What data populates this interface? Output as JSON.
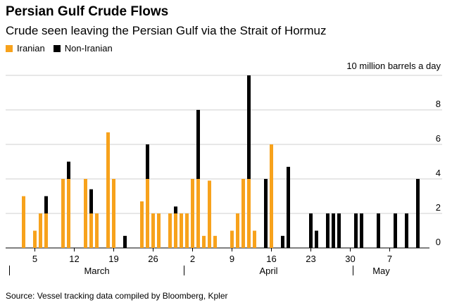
{
  "header": {
    "title": "Persian Gulf Crude Flows",
    "subtitle": "Crude seen leaving the Persian Gulf via the Strait of Hormuz"
  },
  "legend": [
    {
      "label": "Iranian",
      "color": "#f7a21c"
    },
    {
      "label": "Non-Iranian",
      "color": "#000000"
    }
  ],
  "footer": {
    "source": "Source: Vessel tracking data compiled by Bloomberg, Kpler"
  },
  "chart_data": {
    "type": "bar",
    "stacked": true,
    "ylabel": "10 million barrels a day",
    "ylim": [
      0,
      10
    ],
    "yticks": [
      0,
      2,
      4,
      6,
      8
    ],
    "grid": true,
    "x_tick_labels": [
      {
        "label": "5",
        "day": 5
      },
      {
        "label": "12",
        "day": 12
      },
      {
        "label": "19",
        "day": 19
      },
      {
        "label": "26",
        "day": 26
      },
      {
        "label": "2",
        "day": 33
      },
      {
        "label": "9",
        "day": 40
      },
      {
        "label": "16",
        "day": 47
      },
      {
        "label": "23",
        "day": 54
      },
      {
        "label": "30",
        "day": 61
      },
      {
        "label": "7",
        "day": 68
      }
    ],
    "months": [
      {
        "label": "March",
        "start": 1
      },
      {
        "label": "April",
        "start": 32
      },
      {
        "label": "May",
        "start": 62
      }
    ],
    "x": [
      3,
      5,
      6,
      7,
      10,
      11,
      14,
      15,
      16,
      18,
      19,
      21,
      24,
      25,
      26,
      27,
      29,
      30,
      31,
      32,
      33,
      34,
      35,
      36,
      37,
      38,
      40,
      41,
      42,
      43,
      44,
      46,
      47,
      49,
      50,
      54,
      55,
      57,
      58,
      59,
      62,
      63,
      66,
      69,
      71,
      73
    ],
    "series": [
      {
        "name": "Iranian",
        "color": "#f7a21c",
        "values": [
          3,
          1,
          2,
          2,
          4,
          4,
          4,
          2,
          2,
          6.7,
          4,
          0,
          2.7,
          4,
          2,
          2,
          2,
          2,
          2,
          2,
          4,
          4,
          0.7,
          3.9,
          0.7,
          0,
          1,
          2,
          4,
          4,
          1,
          0,
          6,
          0,
          0,
          0,
          0,
          0,
          0,
          0,
          0,
          0,
          0,
          0,
          0,
          0
        ]
      },
      {
        "name": "Non-Iranian",
        "color": "#000000",
        "values": [
          0,
          0,
          0,
          1,
          0,
          1,
          0,
          1.4,
          0,
          0,
          0,
          0.7,
          0,
          2,
          0,
          0,
          0,
          0.4,
          0,
          0,
          0,
          4,
          0,
          0,
          0,
          0,
          0,
          0,
          0,
          6,
          0,
          4,
          0,
          0.7,
          4.7,
          2,
          1,
          2,
          2,
          2,
          2,
          2,
          2,
          2,
          2,
          4
        ]
      }
    ]
  }
}
